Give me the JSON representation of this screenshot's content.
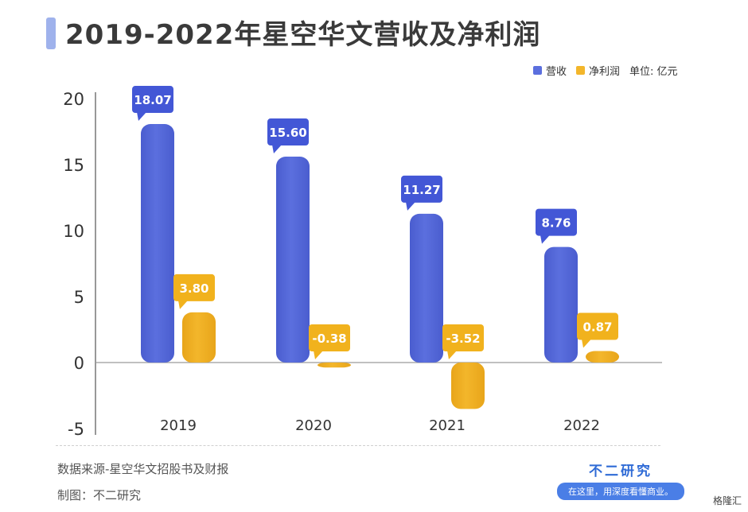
{
  "title": "2019-2022年星空华文营收及净利润",
  "legend": {
    "revenue": "营收",
    "profit": "净利润",
    "unit": "单位: 亿元"
  },
  "colors": {
    "revenue": "#5b6fde",
    "profit": "#f3b62b",
    "title_accent": "#9fb2ec",
    "brand": "#2f6bd6"
  },
  "chart_data": {
    "type": "bar",
    "categories": [
      "2019",
      "2020",
      "2021",
      "2022"
    ],
    "series": [
      {
        "name": "营收",
        "values": [
          18.07,
          15.6,
          11.27,
          8.76
        ],
        "labels": [
          "18.07",
          "15.60",
          "11.27",
          "8.76"
        ]
      },
      {
        "name": "净利润",
        "values": [
          3.8,
          -0.38,
          -3.52,
          0.87
        ],
        "labels": [
          "3.80",
          "-0.38",
          "-3.52",
          "0.87"
        ]
      }
    ],
    "ylim": [
      -5,
      20
    ],
    "yticks": [
      20,
      15,
      10,
      5,
      0,
      -5
    ],
    "ytick_labels": [
      "20",
      "15",
      "10",
      "5",
      "0",
      "-5"
    ],
    "unit": "单位: 亿元",
    "legend_position": "top-right",
    "grid": false
  },
  "footer": {
    "source": "数据来源-星空华文招股书及财报",
    "maker": "制图：不二研究",
    "brand_name": "不二研究",
    "brand_slogan": "在这里，用深度看懂商业。",
    "corner_logo": "格隆汇"
  }
}
